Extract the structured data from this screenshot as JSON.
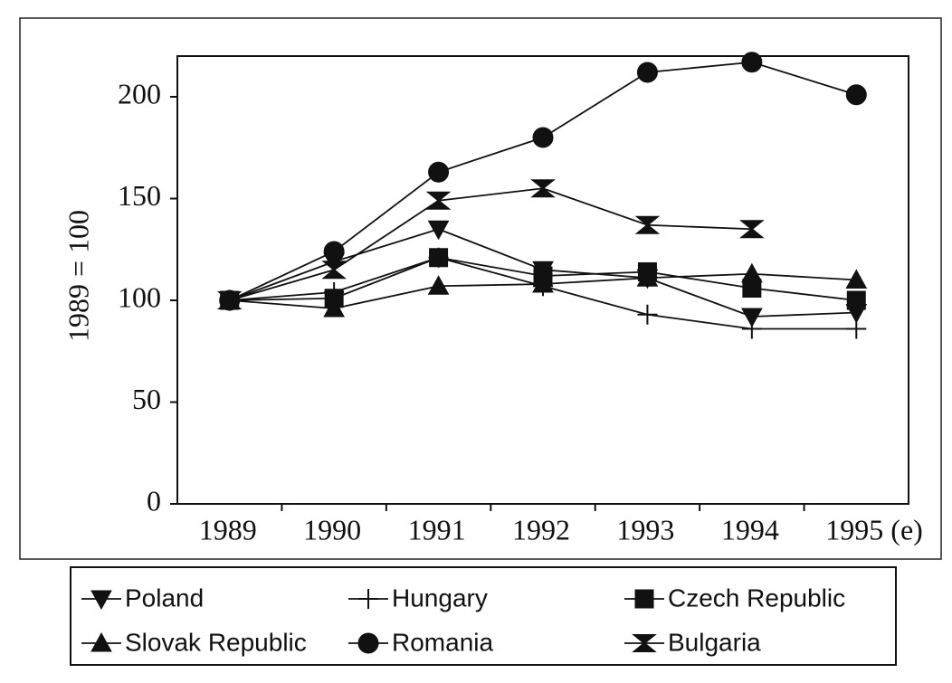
{
  "chart_data": {
    "type": "line",
    "ylabel": "1989 = 100",
    "categories": [
      "1989",
      "1990",
      "1991",
      "1992",
      "1993",
      "1994",
      "1995 (e)"
    ],
    "ylim": [
      0,
      220
    ],
    "yticks": [
      0,
      50,
      100,
      150,
      200
    ],
    "series": [
      {
        "name": "Poland",
        "color": "#111111",
        "marker": "triangle-down",
        "values": [
          100,
          119,
          135,
          115,
          111,
          92,
          94
        ]
      },
      {
        "name": "Hungary",
        "color": "#111111",
        "marker": "plus",
        "values": [
          100,
          104,
          121,
          107,
          93,
          86,
          86
        ]
      },
      {
        "name": "Czech Republic",
        "color": "#111111",
        "marker": "square",
        "values": [
          100,
          101,
          121,
          112,
          114,
          106,
          100
        ]
      },
      {
        "name": "Slovak Republic",
        "color": "#111111",
        "marker": "triangle-up",
        "values": [
          100,
          96,
          107,
          108,
          111,
          113,
          110
        ]
      },
      {
        "name": "Romania",
        "color": "#111111",
        "marker": "circle",
        "values": [
          100,
          124,
          163,
          180,
          212,
          217,
          201
        ]
      },
      {
        "name": "Bulgaria",
        "color": "#111111",
        "marker": "hourglass",
        "values": [
          100,
          115,
          149,
          155,
          137,
          135,
          null
        ]
      }
    ]
  }
}
